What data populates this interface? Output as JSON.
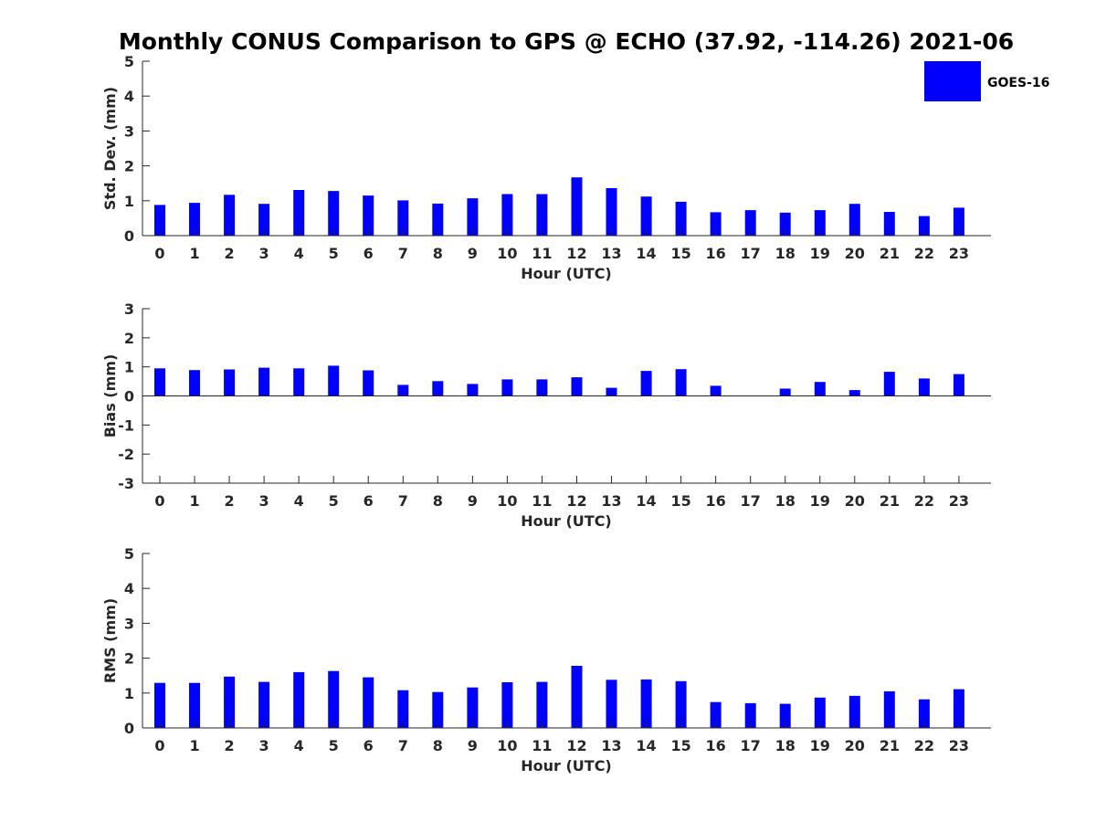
{
  "chart_data": {
    "title": "Monthly CONUS Comparison to GPS @ ECHO (37.92, -114.26) 2021-06",
    "legend": {
      "placement": "top-right",
      "entries": [
        "GOES-16"
      ]
    },
    "color": "#0000ff",
    "panels": [
      {
        "type": "bar",
        "title": "",
        "xlabel": "Hour (UTC)",
        "ylabel": "Std. Dev. (mm)",
        "ylim": [
          0,
          5
        ],
        "yticks": [
          "0",
          "1",
          "2",
          "3",
          "4",
          "5"
        ],
        "categories": [
          "0",
          "1",
          "2",
          "3",
          "4",
          "5",
          "6",
          "7",
          "8",
          "9",
          "10",
          "11",
          "12",
          "13",
          "14",
          "15",
          "16",
          "17",
          "18",
          "19",
          "20",
          "21",
          "22",
          "23"
        ],
        "series": [
          {
            "name": "GOES-16",
            "values": [
              0.88,
              0.94,
              1.17,
              0.91,
              1.31,
              1.28,
              1.15,
              1.01,
              0.92,
              1.07,
              1.19,
              1.19,
              1.67,
              1.36,
              1.12,
              0.97,
              0.67,
              0.73,
              0.66,
              0.73,
              0.91,
              0.68,
              0.56,
              0.8
            ]
          }
        ],
        "grid": false
      },
      {
        "type": "bar",
        "title": "",
        "xlabel": "Hour (UTC)",
        "ylabel": "Bias (mm)",
        "ylim": [
          -3,
          3
        ],
        "yticks": [
          "-3",
          "-2",
          "-1",
          "0",
          "1",
          "2",
          "3"
        ],
        "categories": [
          "0",
          "1",
          "2",
          "3",
          "4",
          "5",
          "6",
          "7",
          "8",
          "9",
          "10",
          "11",
          "12",
          "13",
          "14",
          "15",
          "16",
          "17",
          "18",
          "19",
          "20",
          "21",
          "22",
          "23"
        ],
        "series": [
          {
            "name": "GOES-16",
            "values": [
              0.95,
              0.89,
              0.91,
              0.97,
              0.95,
              1.04,
              0.88,
              0.38,
              0.51,
              0.41,
              0.57,
              0.57,
              0.64,
              0.28,
              0.86,
              0.92,
              0.35,
              0.0,
              0.25,
              0.48,
              0.2,
              0.83,
              0.6,
              0.75
            ]
          }
        ],
        "grid": false
      },
      {
        "type": "bar",
        "title": "",
        "xlabel": "Hour (UTC)",
        "ylabel": "RMS (mm)",
        "ylim": [
          0,
          5
        ],
        "yticks": [
          "0",
          "1",
          "2",
          "3",
          "4",
          "5"
        ],
        "categories": [
          "0",
          "1",
          "2",
          "3",
          "4",
          "5",
          "6",
          "7",
          "8",
          "9",
          "10",
          "11",
          "12",
          "13",
          "14",
          "15",
          "16",
          "17",
          "18",
          "19",
          "20",
          "21",
          "22",
          "23"
        ],
        "series": [
          {
            "name": "GOES-16",
            "values": [
              1.29,
              1.29,
              1.47,
              1.32,
              1.6,
              1.63,
              1.45,
              1.08,
              1.03,
              1.16,
              1.31,
              1.32,
              1.78,
              1.38,
              1.39,
              1.34,
              0.74,
              0.71,
              0.69,
              0.87,
              0.92,
              1.05,
              0.82,
              1.11
            ]
          }
        ],
        "grid": false
      }
    ]
  }
}
